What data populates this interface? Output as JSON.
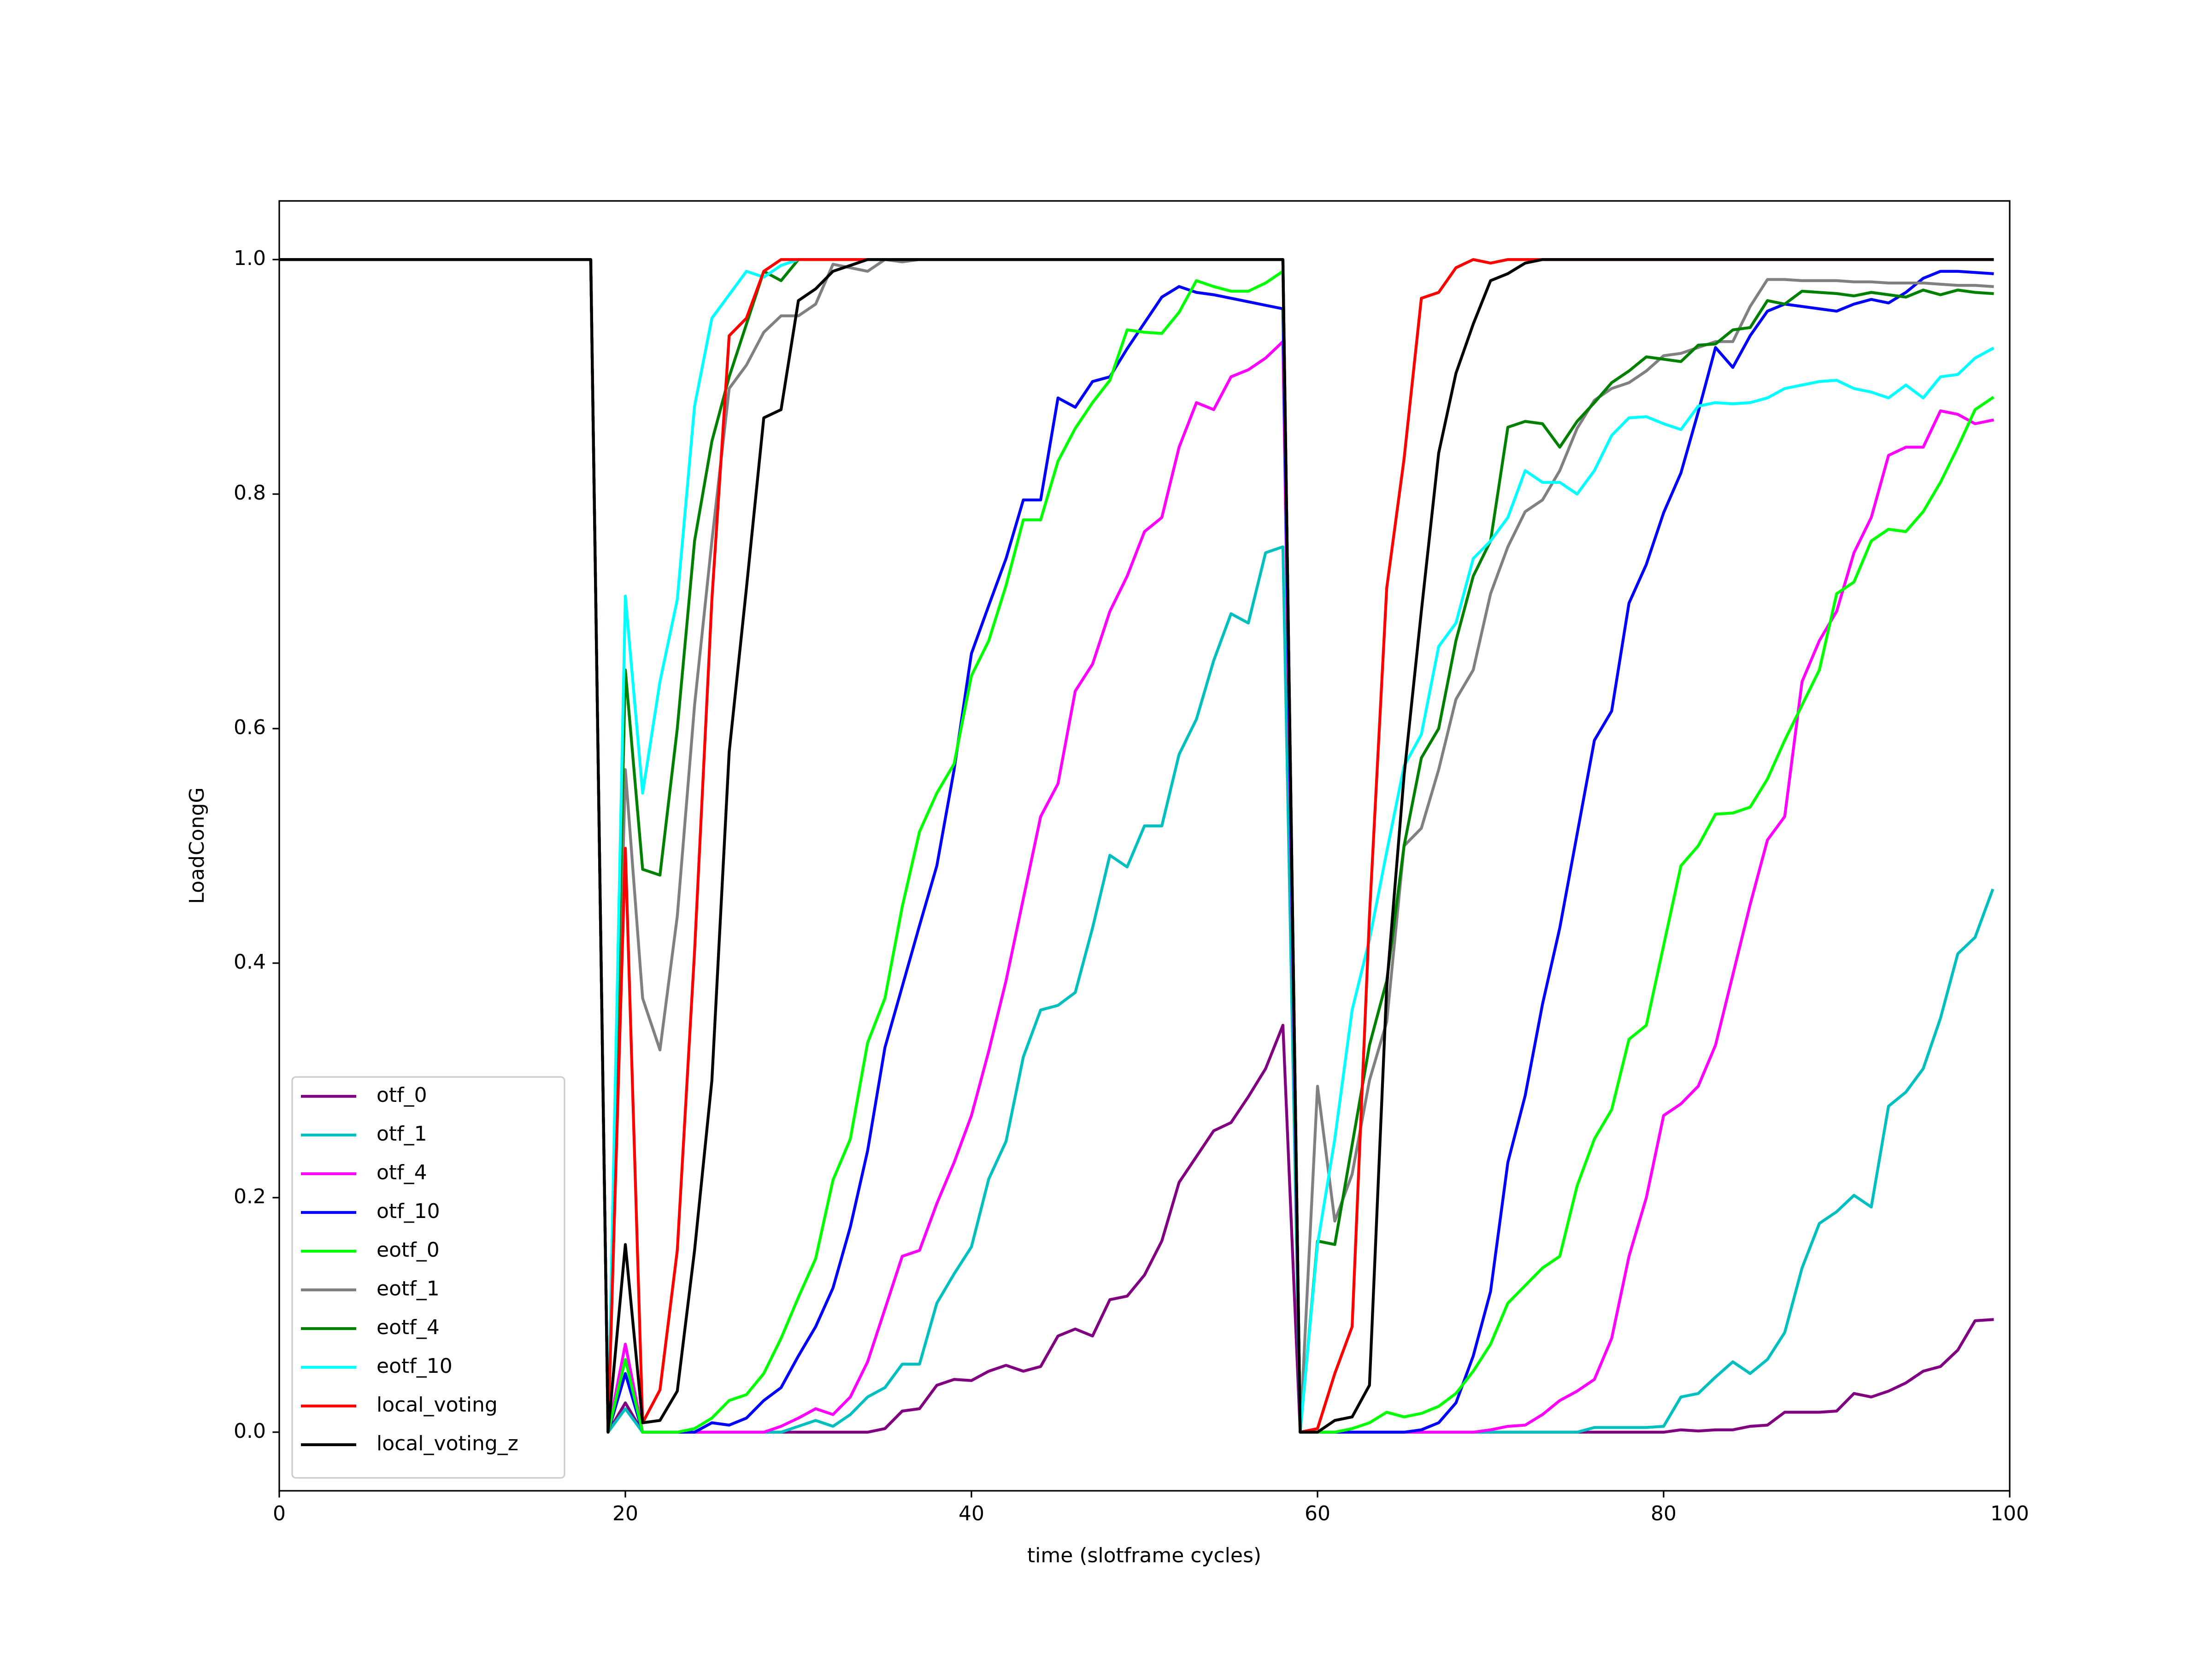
{
  "chart_data": {
    "type": "line",
    "xlabel": "time (slotframe cycles)",
    "ylabel": "LoadCongG",
    "x": [
      0,
      1,
      2,
      3,
      4,
      5,
      6,
      7,
      8,
      9,
      10,
      11,
      12,
      13,
      14,
      15,
      16,
      17,
      18,
      19,
      20,
      21,
      22,
      23,
      24,
      25,
      26,
      27,
      28,
      29,
      30,
      31,
      32,
      33,
      34,
      35,
      36,
      37,
      38,
      39,
      40,
      41,
      42,
      43,
      44,
      45,
      46,
      47,
      48,
      49,
      50,
      51,
      52,
      53,
      54,
      55,
      56,
      57,
      58,
      59,
      60,
      61,
      62,
      63,
      64,
      65,
      66,
      67,
      68,
      69,
      70,
      71,
      72,
      73,
      74,
      75,
      76,
      77,
      78,
      79,
      80,
      81,
      82,
      83,
      84,
      85,
      86,
      87,
      88,
      89,
      90,
      91,
      92,
      93,
      94,
      95,
      96,
      97,
      98,
      99
    ],
    "xlim": [
      0,
      100
    ],
    "xticks": [
      0,
      20,
      40,
      60,
      80,
      100
    ],
    "ylim": [
      -0.05,
      1.05
    ],
    "yticks": [
      {
        "value": 0,
        "label": "0.0"
      },
      0.2,
      0.4,
      0.6,
      0.8,
      {
        "value": 1,
        "label": "1.0"
      }
    ],
    "grid": false,
    "legend": "lower left",
    "series": [
      {
        "name": "otf_0",
        "color": "#800080",
        "values": [
          1,
          1,
          1,
          1,
          1,
          1,
          1,
          1,
          1,
          1,
          1,
          1,
          1,
          1,
          1,
          1,
          1,
          1,
          1,
          0,
          0.025,
          0,
          0,
          0,
          0,
          0,
          0,
          0,
          0,
          0,
          0,
          0,
          0,
          0,
          0,
          0.003,
          0.018,
          0.02,
          0.04,
          0.045,
          0.044,
          0.052,
          0.057,
          0.052,
          0.056,
          0.082,
          0.088,
          0.082,
          0.113,
          0.116,
          0.134,
          0.163,
          0.213,
          0.235,
          0.257,
          0.264,
          0.286,
          0.31,
          0.347,
          0,
          0,
          0,
          0,
          0,
          0,
          0,
          0,
          0,
          0,
          0,
          0,
          0,
          0,
          0,
          0,
          0,
          0,
          0,
          0,
          0,
          0,
          0.002,
          0.001,
          0.002,
          0.002,
          0.005,
          0.006,
          0.017,
          0.017,
          0.017,
          0.018,
          0.033,
          0.03,
          0.035,
          0.042,
          0.052,
          0.056,
          0.07,
          0.095,
          0.096
        ]
      },
      {
        "name": "otf_1",
        "color": "#00bfbf",
        "values": [
          1,
          1,
          1,
          1,
          1,
          1,
          1,
          1,
          1,
          1,
          1,
          1,
          1,
          1,
          1,
          1,
          1,
          1,
          1,
          0,
          0.02,
          0,
          0,
          0,
          0,
          0,
          0,
          0,
          0,
          0,
          0.005,
          0.01,
          0.005,
          0.015,
          0.03,
          0.038,
          0.058,
          0.058,
          0.11,
          0.135,
          0.158,
          0.216,
          0.248,
          0.32,
          0.36,
          0.364,
          0.375,
          0.43,
          0.492,
          0.482,
          0.517,
          0.517,
          0.578,
          0.608,
          0.658,
          0.698,
          0.69,
          0.75,
          0.755,
          0,
          0,
          0,
          0,
          0,
          0,
          0,
          0,
          0,
          0,
          0,
          0,
          0,
          0,
          0,
          0,
          0,
          0.004,
          0.004,
          0.004,
          0.004,
          0.005,
          0.03,
          0.033,
          0.047,
          0.06,
          0.05,
          0.062,
          0.085,
          0.14,
          0.178,
          0.188,
          0.202,
          0.192,
          0.278,
          0.29,
          0.31,
          0.353,
          0.408,
          0.422,
          0.462
        ]
      },
      {
        "name": "otf_4",
        "color": "#ff00ff",
        "values": [
          1,
          1,
          1,
          1,
          1,
          1,
          1,
          1,
          1,
          1,
          1,
          1,
          1,
          1,
          1,
          1,
          1,
          1,
          1,
          0,
          0.075,
          0,
          0,
          0,
          0,
          0,
          0,
          0,
          0,
          0.005,
          0.012,
          0.02,
          0.015,
          0.03,
          0.06,
          0.105,
          0.15,
          0.155,
          0.195,
          0.23,
          0.27,
          0.325,
          0.385,
          0.455,
          0.525,
          0.553,
          0.632,
          0.655,
          0.7,
          0.73,
          0.768,
          0.78,
          0.84,
          0.878,
          0.872,
          0.9,
          0.906,
          0.916,
          0.93,
          0,
          0,
          0,
          0,
          0,
          0,
          0,
          0,
          0,
          0,
          0,
          0.002,
          0.005,
          0.006,
          0.015,
          0.027,
          0.035,
          0.045,
          0.08,
          0.15,
          0.2,
          0.27,
          0.28,
          0.295,
          0.33,
          0.39,
          0.45,
          0.505,
          0.525,
          0.64,
          0.675,
          0.7,
          0.75,
          0.78,
          0.833,
          0.84,
          0.84,
          0.871,
          0.868,
          0.86,
          0.863
        ]
      },
      {
        "name": "otf_10",
        "color": "#0000ff",
        "values": [
          1,
          1,
          1,
          1,
          1,
          1,
          1,
          1,
          1,
          1,
          1,
          1,
          1,
          1,
          1,
          1,
          1,
          1,
          1,
          0,
          0.05,
          0,
          0,
          0,
          0,
          0.008,
          0.006,
          0.012,
          0.027,
          0.038,
          0.065,
          0.09,
          0.123,
          0.175,
          0.24,
          0.328,
          0.38,
          0.432,
          0.483,
          0.565,
          0.664,
          0.705,
          0.745,
          0.795,
          0.795,
          0.882,
          0.874,
          0.896,
          0.9,
          0.924,
          0.946,
          0.968,
          0.977,
          0.972,
          0.97,
          0.967,
          0.964,
          0.961,
          0.958,
          0,
          0,
          0,
          0,
          0,
          0,
          0,
          0.002,
          0.008,
          0.025,
          0.065,
          0.12,
          0.23,
          0.287,
          0.365,
          0.43,
          0.51,
          0.59,
          0.615,
          0.707,
          0.74,
          0.784,
          0.818,
          0.87,
          0.925,
          0.908,
          0.935,
          0.956,
          0.962,
          0.96,
          0.958,
          0.956,
          0.962,
          0.966,
          0.963,
          0.972,
          0.984,
          0.99,
          0.99,
          0.989,
          0.988
        ]
      },
      {
        "name": "eotf_0",
        "color": "#00ff00",
        "values": [
          1,
          1,
          1,
          1,
          1,
          1,
          1,
          1,
          1,
          1,
          1,
          1,
          1,
          1,
          1,
          1,
          1,
          1,
          1,
          0,
          0.062,
          0,
          0,
          0,
          0.003,
          0.012,
          0.027,
          0.032,
          0.05,
          0.08,
          0.115,
          0.148,
          0.215,
          0.25,
          0.332,
          0.37,
          0.448,
          0.512,
          0.545,
          0.57,
          0.645,
          0.675,
          0.722,
          0.778,
          0.778,
          0.828,
          0.856,
          0.878,
          0.897,
          0.94,
          0.938,
          0.937,
          0.955,
          0.982,
          0.977,
          0.973,
          0.973,
          0.98,
          0.99,
          0,
          0,
          0,
          0.003,
          0.008,
          0.017,
          0.013,
          0.016,
          0.022,
          0.033,
          0.052,
          0.075,
          0.11,
          0.125,
          0.14,
          0.15,
          0.21,
          0.25,
          0.275,
          0.335,
          0.347,
          0.415,
          0.483,
          0.5,
          0.527,
          0.528,
          0.533,
          0.557,
          0.59,
          0.62,
          0.65,
          0.715,
          0.725,
          0.76,
          0.77,
          0.768,
          0.785,
          0.81,
          0.84,
          0.872,
          0.882
        ]
      },
      {
        "name": "eotf_1",
        "color": "#808080",
        "values": [
          1,
          1,
          1,
          1,
          1,
          1,
          1,
          1,
          1,
          1,
          1,
          1,
          1,
          1,
          1,
          1,
          1,
          1,
          1,
          0,
          0.565,
          0.37,
          0.326,
          0.44,
          0.62,
          0.76,
          0.89,
          0.91,
          0.938,
          0.952,
          0.952,
          0.962,
          0.996,
          0.993,
          0.99,
          1,
          0.998,
          1,
          1,
          1,
          1,
          1,
          1,
          1,
          1,
          1,
          1,
          1,
          1,
          1,
          1,
          1,
          1,
          1,
          1,
          1,
          1,
          1,
          1,
          0,
          0.295,
          0.18,
          0.22,
          0.3,
          0.35,
          0.5,
          0.515,
          0.565,
          0.625,
          0.65,
          0.715,
          0.755,
          0.785,
          0.795,
          0.82,
          0.856,
          0.88,
          0.89,
          0.895,
          0.905,
          0.918,
          0.92,
          0.925,
          0.93,
          0.93,
          0.96,
          0.983,
          0.983,
          0.982,
          0.982,
          0.982,
          0.981,
          0.981,
          0.98,
          0.98,
          0.98,
          0.979,
          0.978,
          0.978,
          0.977
        ]
      },
      {
        "name": "eotf_4",
        "color": "#008000",
        "values": [
          1,
          1,
          1,
          1,
          1,
          1,
          1,
          1,
          1,
          1,
          1,
          1,
          1,
          1,
          1,
          1,
          1,
          1,
          1,
          0,
          0.65,
          0.48,
          0.475,
          0.6,
          0.76,
          0.845,
          0.9,
          0.945,
          0.99,
          0.982,
          1,
          1,
          1,
          1,
          1,
          1,
          1,
          1,
          1,
          1,
          1,
          1,
          1,
          1,
          1,
          1,
          1,
          1,
          1,
          1,
          1,
          1,
          1,
          1,
          1,
          1,
          1,
          1,
          1,
          0,
          0.163,
          0.16,
          0.245,
          0.33,
          0.385,
          0.5,
          0.575,
          0.6,
          0.675,
          0.73,
          0.76,
          0.857,
          0.862,
          0.86,
          0.84,
          0.862,
          0.878,
          0.895,
          0.905,
          0.917,
          0.915,
          0.913,
          0.927,
          0.928,
          0.94,
          0.942,
          0.965,
          0.962,
          0.973,
          0.972,
          0.971,
          0.969,
          0.972,
          0.97,
          0.968,
          0.974,
          0.97,
          0.974,
          0.972,
          0.971
        ]
      },
      {
        "name": "eotf_10",
        "color": "#00ffff",
        "values": [
          1,
          1,
          1,
          1,
          1,
          1,
          1,
          1,
          1,
          1,
          1,
          1,
          1,
          1,
          1,
          1,
          1,
          1,
          1,
          0,
          0.713,
          0.545,
          0.64,
          0.71,
          0.875,
          0.95,
          0.97,
          0.99,
          0.985,
          0.995,
          1,
          1,
          1,
          1,
          1,
          1,
          1,
          1,
          1,
          1,
          1,
          1,
          1,
          1,
          1,
          1,
          1,
          1,
          1,
          1,
          1,
          1,
          1,
          1,
          1,
          1,
          1,
          1,
          1,
          0,
          0.16,
          0.25,
          0.36,
          0.42,
          0.495,
          0.568,
          0.595,
          0.67,
          0.69,
          0.745,
          0.76,
          0.78,
          0.82,
          0.81,
          0.81,
          0.8,
          0.82,
          0.85,
          0.865,
          0.866,
          0.86,
          0.855,
          0.875,
          0.878,
          0.877,
          0.878,
          0.882,
          0.89,
          0.893,
          0.896,
          0.897,
          0.89,
          0.887,
          0.882,
          0.893,
          0.882,
          0.9,
          0.902,
          0.916,
          0.924
        ]
      },
      {
        "name": "local_voting",
        "color": "#ff0000",
        "values": [
          1,
          1,
          1,
          1,
          1,
          1,
          1,
          1,
          1,
          1,
          1,
          1,
          1,
          1,
          1,
          1,
          1,
          1,
          1,
          0,
          0.498,
          0.008,
          0.036,
          0.155,
          0.41,
          0.71,
          0.935,
          0.95,
          0.99,
          1,
          1,
          1,
          1,
          1,
          1,
          1,
          1,
          1,
          1,
          1,
          1,
          1,
          1,
          1,
          1,
          1,
          1,
          1,
          1,
          1,
          1,
          1,
          1,
          1,
          1,
          1,
          1,
          1,
          1,
          0,
          0.003,
          0.05,
          0.09,
          0.44,
          0.72,
          0.83,
          0.967,
          0.972,
          0.993,
          1,
          0.997,
          1,
          1,
          1,
          1,
          1,
          1,
          1,
          1,
          1,
          1,
          1,
          1,
          1,
          1,
          1,
          1,
          1,
          1,
          1,
          1,
          1,
          1,
          1,
          1,
          1,
          1,
          1,
          1,
          1
        ]
      },
      {
        "name": "local_voting_z",
        "color": "#000000",
        "values": [
          1,
          1,
          1,
          1,
          1,
          1,
          1,
          1,
          1,
          1,
          1,
          1,
          1,
          1,
          1,
          1,
          1,
          1,
          1,
          0,
          0.16,
          0.008,
          0.01,
          0.035,
          0.155,
          0.3,
          0.58,
          0.72,
          0.865,
          0.872,
          0.965,
          0.975,
          0.99,
          0.995,
          1,
          1,
          1,
          1,
          1,
          1,
          1,
          1,
          1,
          1,
          1,
          1,
          1,
          1,
          1,
          1,
          1,
          1,
          1,
          1,
          1,
          1,
          1,
          1,
          1,
          0,
          0,
          0.01,
          0.013,
          0.04,
          0.38,
          0.56,
          0.7,
          0.835,
          0.903,
          0.945,
          0.982,
          0.988,
          0.997,
          1,
          1,
          1,
          1,
          1,
          1,
          1,
          1,
          1,
          1,
          1,
          1,
          1,
          1,
          1,
          1,
          1,
          1,
          1,
          1,
          1,
          1,
          1,
          1,
          1,
          1,
          1
        ]
      }
    ]
  }
}
